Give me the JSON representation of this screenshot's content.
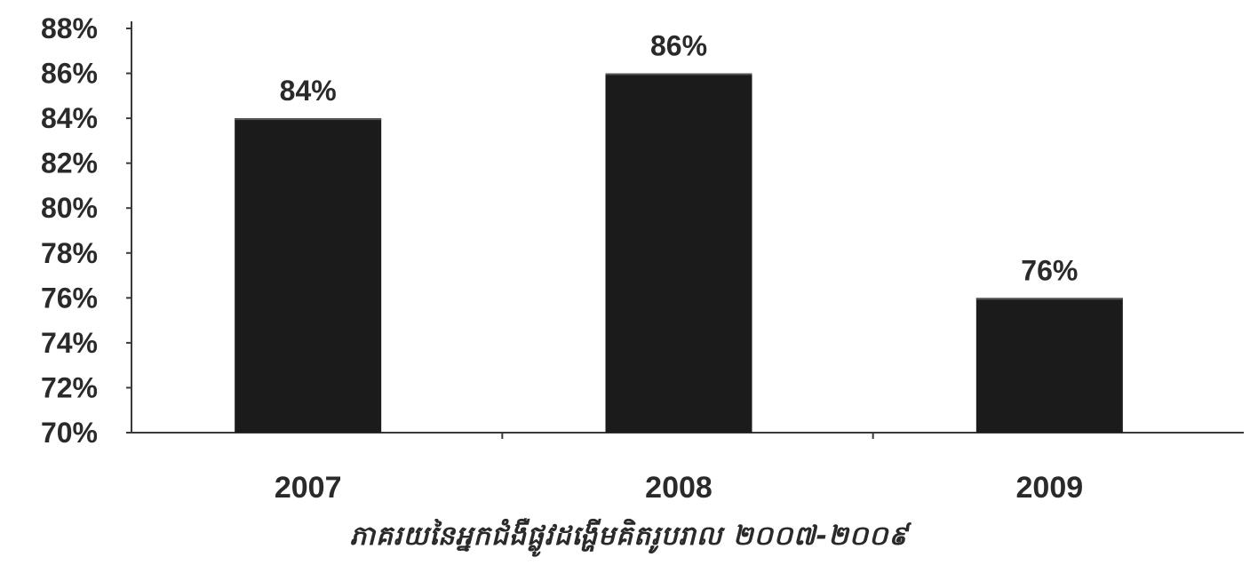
{
  "chart_data": {
    "type": "bar",
    "categories": [
      "2007",
      "2008",
      "2009"
    ],
    "values": [
      84,
      86,
      76
    ],
    "data_labels": [
      "84%",
      "86%",
      "76%"
    ],
    "ylim": [
      70,
      88
    ],
    "yticks": [
      70,
      72,
      74,
      76,
      78,
      80,
      82,
      84,
      86,
      88
    ],
    "ytick_labels": [
      "70%",
      "72%",
      "74%",
      "76%",
      "78%",
      "80%",
      "82%",
      "84%",
      "86%",
      "88%"
    ],
    "caption": "ភាគរយនៃអ្នកជំងឺផ្លូវដង្ហើមគិតរូបរាល ២០០៧-២០០៩",
    "grid": false,
    "legend": "none",
    "bar_color": "#1b1b1b",
    "axis_color": "#3a3a3a"
  }
}
